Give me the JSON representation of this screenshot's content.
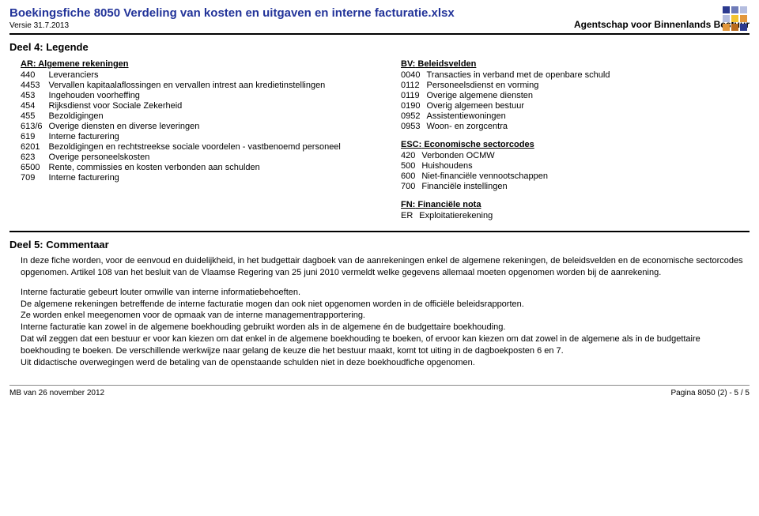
{
  "header": {
    "title": "Boekingsfiche 8050 Verdeling van kosten en uitgaven en interne facturatie.xlsx",
    "version": "Versie 31.7.2013",
    "agency": "Agentschap voor Binnenlands Bestuur"
  },
  "logo": {
    "colors": [
      "#2b3a8f",
      "#6e7bb8",
      "#b4bddf",
      "#f4c430",
      "#e2973c",
      "#b96b1d"
    ],
    "rows": 3,
    "cols": 3,
    "size": 9,
    "gap": 2
  },
  "sections": {
    "deel4_title": "Deel 4: Legende",
    "deel5_title": "Deel 5: Commentaar"
  },
  "legend": {
    "left": {
      "heading_abbr": "AR:",
      "heading_rest": " Algemene rekeningen",
      "rows": [
        {
          "code": "440",
          "desc": "Leveranciers"
        },
        {
          "code": "4453",
          "desc": "Vervallen kapitaalaflossingen en vervallen intrest aan kredietinstellingen"
        },
        {
          "code": "453",
          "desc": "Ingehouden voorheffing"
        },
        {
          "code": "454",
          "desc": "Rijksdienst voor Sociale Zekerheid"
        },
        {
          "code": "455",
          "desc": "Bezoldigingen"
        },
        {
          "code": "613/6",
          "desc": "Overige diensten en diverse leveringen"
        },
        {
          "code": "619",
          "desc": "Interne facturering"
        },
        {
          "code": "6201",
          "desc": "Bezoldigingen en rechtstreekse sociale voordelen - vastbenoemd personeel"
        },
        {
          "code": "623",
          "desc": "Overige personeelskosten"
        },
        {
          "code": "6500",
          "desc": "Rente, commissies en kosten verbonden aan schulden"
        },
        {
          "code": "709",
          "desc": "Interne facturering"
        }
      ]
    },
    "right": {
      "groups": [
        {
          "heading_abbr": "BV:",
          "heading_rest": " Beleidsvelden",
          "rows": [
            {
              "code": "0040",
              "desc": "Transacties in verband met de openbare schuld"
            },
            {
              "code": "0112",
              "desc": "Personeelsdienst en vorming"
            },
            {
              "code": "0119",
              "desc": "Overige algemene diensten"
            },
            {
              "code": "0190",
              "desc": "Overig algemeen bestuur"
            },
            {
              "code": "0952",
              "desc": "Assistentiewoningen"
            },
            {
              "code": "0953",
              "desc": "Woon- en zorgcentra"
            }
          ]
        },
        {
          "heading_abbr": "ESC:",
          "heading_rest": " Economische sectorcodes",
          "rows": [
            {
              "code": "420",
              "desc": "Verbonden OCMW"
            },
            {
              "code": "500",
              "desc": "Huishoudens"
            },
            {
              "code": "600",
              "desc": "Niet-financiële vennootschappen"
            },
            {
              "code": "700",
              "desc": "Financiële instellingen"
            }
          ]
        },
        {
          "heading_abbr": "FN:",
          "heading_rest": " Financiële nota",
          "rows": [
            {
              "code": "ER",
              "desc": "Exploitatierekening"
            }
          ]
        }
      ]
    }
  },
  "commentary": {
    "p1": "In deze fiche worden, voor de eenvoud en duidelijkheid, in het budgettair dagboek van de aanrekeningen enkel de algemene rekeningen, de beleidsvelden en de economische sectorcodes opgenomen. Artikel 108 van het besluit van de Vlaamse Regering van 25 juni 2010 vermeldt welke gegevens allemaal moeten opgenomen worden bij de aanrekening.",
    "p2a": "Interne facturatie gebeurt louter omwille van interne informatiebehoeften.",
    "p2b": "De algemene rekeningen betreffende de interne facturatie mogen dan ook niet opgenomen worden in de officiële beleidsrapporten.",
    "p2c": "Ze worden enkel meegenomen voor de opmaak van de interne managementrapportering.",
    "p2d": "Interne facturatie kan zowel in de algemene boekhouding gebruikt worden als in de algemene én de budgettaire boekhouding.",
    "p2e": "Dat wil zeggen dat een bestuur er voor kan kiezen om dat enkel in de algemene boekhouding te boeken, of ervoor kan kiezen om dat zowel in de algemene als in de budgettaire boekhouding te boeken. De verschillende werkwijze naar gelang de keuze die het bestuur maakt, komt tot uiting in de dagboekposten 6 en 7.",
    "p2f": "Uit didactische overwegingen werd de betaling van de openstaande schulden niet in deze boekhoudfiche opgenomen."
  },
  "footer": {
    "left": "MB van 26 november 2012",
    "right": "Pagina 8050 (2) - 5 / 5"
  }
}
